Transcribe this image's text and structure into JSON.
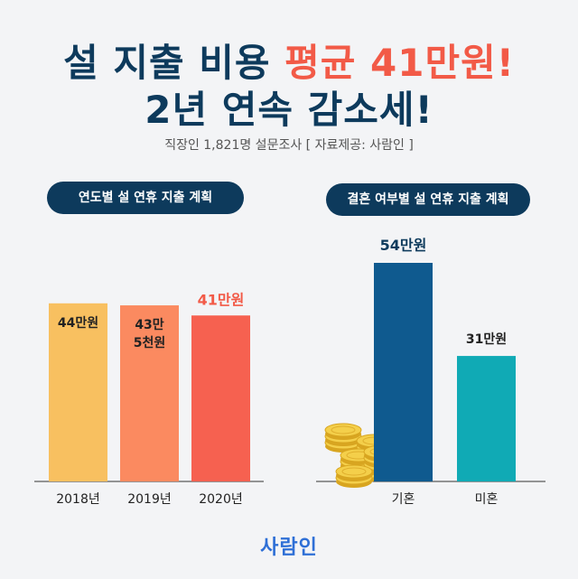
{
  "headline": {
    "line1_pre": "설 지출 비용 ",
    "line1_highlight": "평균 41만원!",
    "line2": "2년 연속 감소세!"
  },
  "subtitle": "직장인 1,821명 설문조사 [ 자료제공: 사람인 ]",
  "brand": "사람인",
  "colors": {
    "navy": "#0d3a5c",
    "accent": "#f25a47",
    "bar2018": "#f8c060",
    "bar2019": "#fb8a60",
    "bar2020": "#f66150",
    "married": "#0f5a8f",
    "single": "#10aab5"
  },
  "chart_data": [
    {
      "type": "bar",
      "title": "연도별 설 연휴 지출 계획",
      "categories": [
        "2018년",
        "2019년",
        "2020년"
      ],
      "values": [
        44,
        43.5,
        41
      ],
      "labels": [
        "44만원",
        "43만\n5천원",
        "41만원"
      ],
      "ylim": [
        0,
        60
      ]
    },
    {
      "type": "bar",
      "title": "결혼 여부별 설 연휴 지출 계획",
      "categories": [
        "기혼",
        "미혼"
      ],
      "values": [
        54,
        31
      ],
      "labels": [
        "54만원",
        "31만원"
      ],
      "ylim": [
        0,
        60
      ]
    }
  ]
}
